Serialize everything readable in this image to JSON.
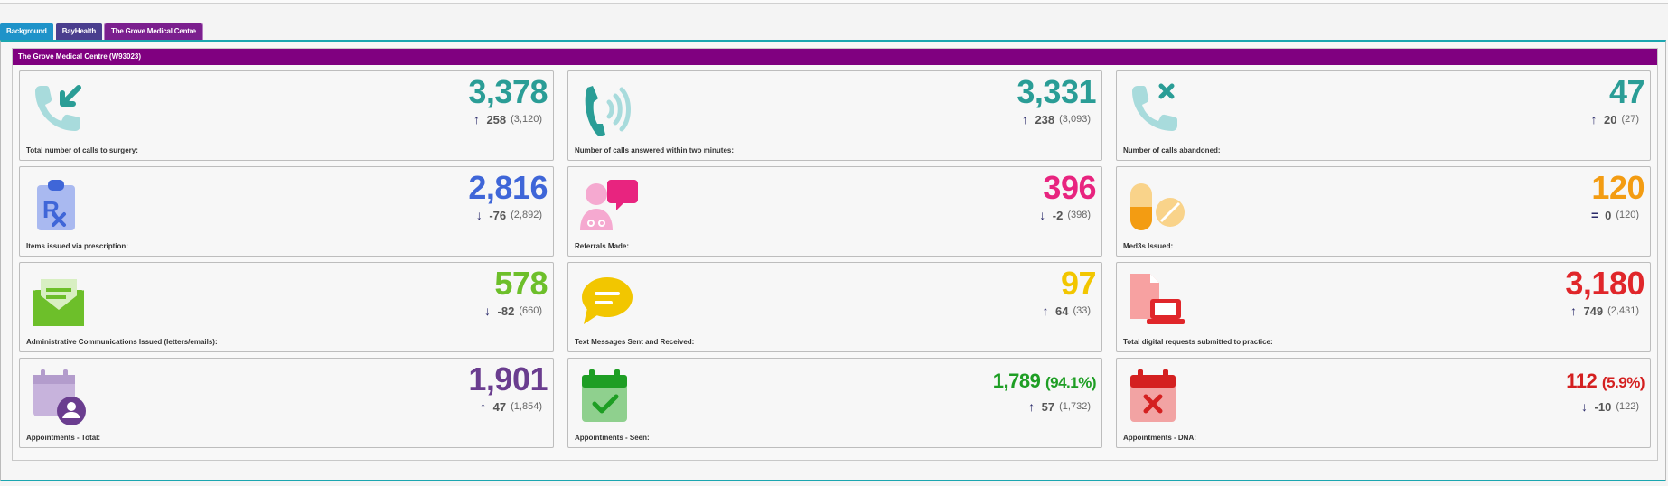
{
  "tabs": [
    {
      "label": "Background"
    },
    {
      "label": "BayHealth"
    },
    {
      "label": "The Grove Medical Centre"
    }
  ],
  "panel": {
    "title": "The Grove Medical Centre (W93023)"
  },
  "colors": {
    "teal": "#2a9d96",
    "blue": "#3f66d8",
    "pink": "#e8247f",
    "orange": "#f39c12",
    "green": "#6dbf2a",
    "yellow": "#f2c600",
    "red": "#e0262a",
    "purple": "#6a3d8f",
    "dark_green": "#1e9e24",
    "dark_red": "#d42020",
    "header_purple": "#800080"
  },
  "cards": [
    {
      "icon": "phone-incoming-icon",
      "label": "Total number of calls to surgery:",
      "value": "3,378",
      "change_arrow": "↑",
      "change": "258",
      "previous": "(3,120)"
    },
    {
      "icon": "phone-answered-icon",
      "label": "Number of calls answered within two minutes:",
      "value": "3,331",
      "change_arrow": "↑",
      "change": "238",
      "previous": "(3,093)"
    },
    {
      "icon": "phone-abandoned-icon",
      "label": "Number of calls abandoned:",
      "value": "47",
      "change_arrow": "↑",
      "change": "20",
      "previous": "(27)"
    },
    {
      "icon": "prescription-icon",
      "label": "Items issued via prescription:",
      "value": "2,816",
      "change_arrow": "↓",
      "change": "-76",
      "previous": "(2,892)"
    },
    {
      "icon": "doctor-referral-icon",
      "label": "Referrals Made:",
      "value": "396",
      "change_arrow": "↓",
      "change": "-2",
      "previous": "(398)"
    },
    {
      "icon": "pills-icon",
      "label": "Med3s Issued:",
      "value": "120",
      "change_arrow": "=",
      "change": "0",
      "previous": "(120)"
    },
    {
      "icon": "envelope-letter-icon",
      "label": "Administrative Communications Issued (letters/emails):",
      "value": "578",
      "change_arrow": "↓",
      "change": "-82",
      "previous": "(660)"
    },
    {
      "icon": "chat-bubble-icon",
      "label": "Text Messages Sent and Received:",
      "value": "97",
      "change_arrow": "↑",
      "change": "64",
      "previous": "(33)"
    },
    {
      "icon": "digital-request-icon",
      "label": "Total digital requests submitted to practice:",
      "value": "3,180",
      "change_arrow": "↑",
      "change": "749",
      "previous": "(2,431)"
    },
    {
      "icon": "calendar-user-icon",
      "label": "Appointments - Total:",
      "value": "1,901",
      "change_arrow": "↑",
      "change": "47",
      "previous": "(1,854)"
    },
    {
      "icon": "calendar-check-icon",
      "label": "Appointments - Seen:",
      "value": "1,789",
      "value_pct": "(94.1%)",
      "change_arrow": "↑",
      "change": "57",
      "previous": "(1,732)"
    },
    {
      "icon": "calendar-cross-icon",
      "label": "Appointments - DNA:",
      "value": "112",
      "value_pct": "(5.9%)",
      "change_arrow": "↓",
      "change": "-10",
      "previous": "(122)"
    }
  ]
}
